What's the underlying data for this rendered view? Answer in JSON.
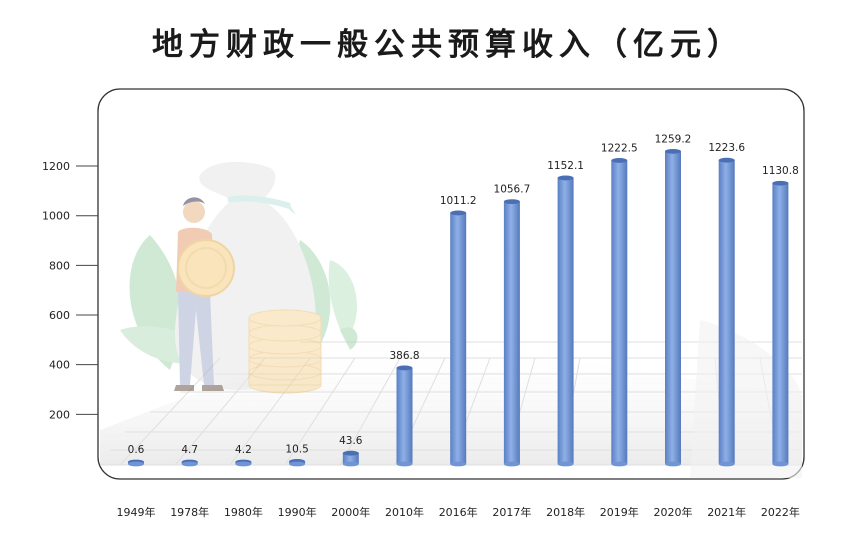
{
  "chart_data": {
    "type": "bar",
    "title": "地方财政一般公共预算收入（亿元）",
    "xlabel": "",
    "ylabel": "",
    "categories": [
      "1949年",
      "1978年",
      "1980年",
      "1990年",
      "2000年",
      "2010年",
      "2016年",
      "2017年",
      "2018年",
      "2019年",
      "2020年",
      "2021年",
      "2022年"
    ],
    "values": [
      0.6,
      4.7,
      4.2,
      10.5,
      43.6,
      386.8,
      1011.2,
      1056.7,
      1152.1,
      1222.5,
      1259.2,
      1223.6,
      1130.8
    ],
    "value_labels": [
      "0.6",
      "4.7",
      "4.2",
      "10.5",
      "43.6",
      "386.8",
      "1011.2",
      "1056.7",
      "1152.1",
      "1222.5",
      "1259.2",
      "1223.6",
      "1130.8"
    ],
    "yticks": [
      "200",
      "400",
      "600",
      "800",
      "1000",
      "1200"
    ],
    "ytick_values": [
      200,
      400,
      600,
      800,
      1000,
      1200
    ],
    "ylim": [
      0,
      1300
    ],
    "bar_color": "#6f95d6",
    "bar_color_dark": "#4a6fb5",
    "grid": true,
    "legend": "none"
  }
}
